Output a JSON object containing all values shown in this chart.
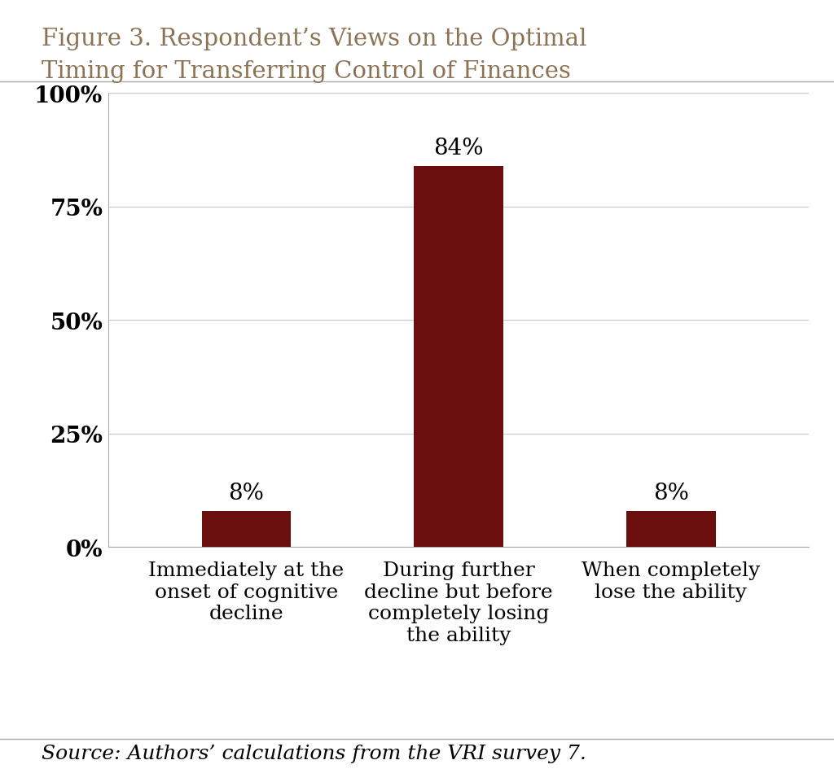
{
  "title_line1": "Figure 3. Respondent’s Views on the Optimal",
  "title_line2": "Timing for Transferring Control of Finances",
  "categories": [
    "Immediately at the\nonset of cognitive\ndecline",
    "During further\ndecline but before\ncompletely losing\nthe ability",
    "When completely\nlose the ability"
  ],
  "values": [
    8,
    84,
    8
  ],
  "bar_color": "#6B0E0E",
  "yticks": [
    0,
    25,
    50,
    75,
    100
  ],
  "ytick_labels": [
    "0%",
    "25%",
    "50%",
    "75%",
    "100%"
  ],
  "ylim": [
    0,
    100
  ],
  "source_text": "Source: Authors’ calculations from the VRI survey 7.",
  "background_color": "#FFFFFF",
  "title_color": "#8B7355",
  "grid_color": "#CCCCCC",
  "axis_line_color": "#AAAAAA",
  "bar_label_fontsize": 20,
  "title_fontsize": 21,
  "tick_label_fontsize": 20,
  "xlabel_fontsize": 18,
  "source_fontsize": 18,
  "bar_width": 0.42
}
